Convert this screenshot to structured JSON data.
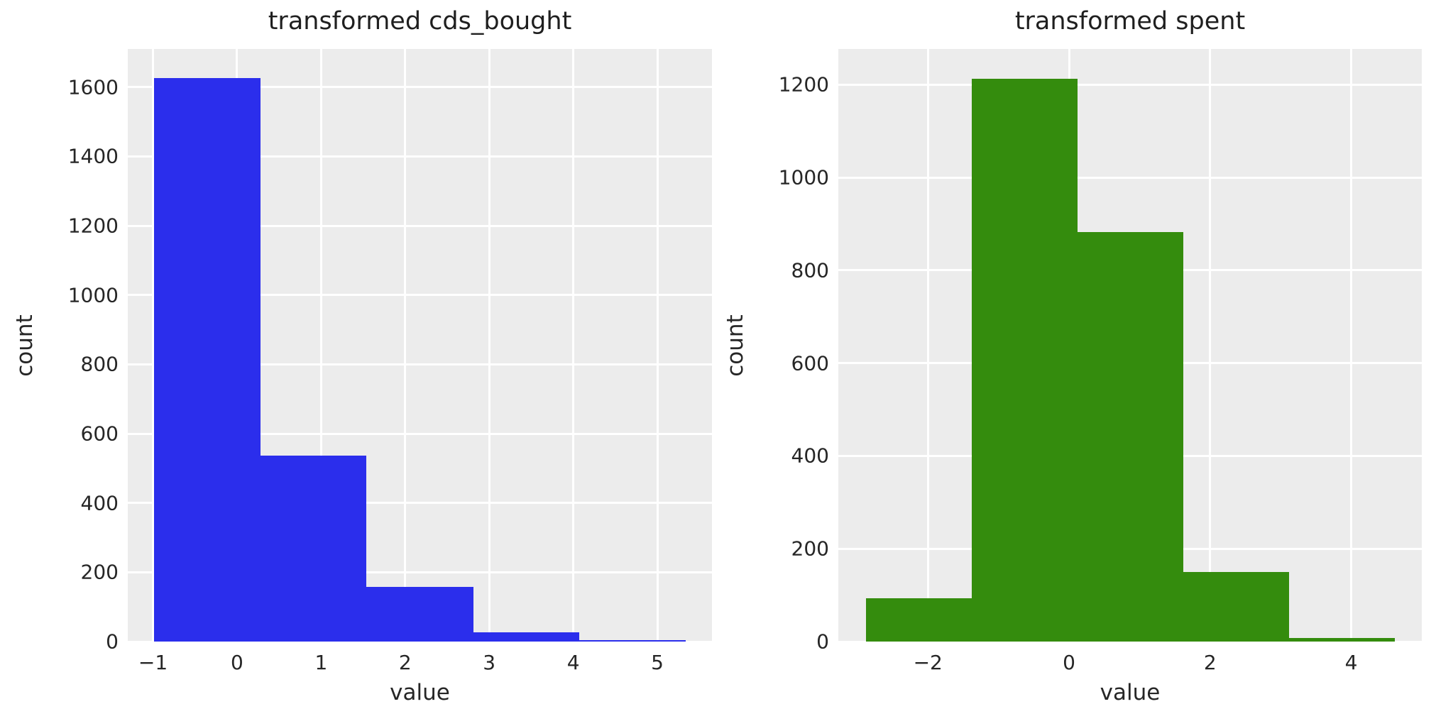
{
  "figure": {
    "background": "#ffffff",
    "plot_background": "#ececec",
    "grid_color": "#ffffff",
    "text_color": "#262626"
  },
  "chart_data": [
    {
      "type": "bar",
      "chart_kind": "histogram",
      "title": "transformed cds_bought",
      "xlabel": "value",
      "ylabel": "count",
      "bar_color": "#2b2eec",
      "bin_edges": [
        -0.99,
        0.28,
        1.54,
        2.81,
        4.07,
        5.34
      ],
      "counts": [
        1626,
        537,
        157,
        27,
        4
      ],
      "x_tick_values": [
        -1,
        0,
        1,
        2,
        3,
        4,
        5
      ],
      "x_tick_labels": [
        "−1",
        "0",
        "1",
        "2",
        "3",
        "4",
        "5"
      ],
      "y_tick_values": [
        0,
        200,
        400,
        600,
        800,
        1000,
        1200,
        1400,
        1600
      ],
      "y_tick_labels": [
        "0",
        "200",
        "400",
        "600",
        "800",
        "1000",
        "1200",
        "1400",
        "1600"
      ],
      "xlim": [
        -1.3,
        5.65
      ],
      "ylim": [
        0,
        1710
      ],
      "grid": true,
      "legend_position": "none"
    },
    {
      "type": "bar",
      "chart_kind": "histogram",
      "title": "transformed spent",
      "xlabel": "value",
      "ylabel": "count",
      "bar_color": "#348c0d",
      "bin_edges": [
        -2.88,
        -1.38,
        0.12,
        1.62,
        3.12,
        4.62
      ],
      "counts": [
        94,
        1213,
        882,
        150,
        8
      ],
      "x_tick_values": [
        -2,
        0,
        2,
        4
      ],
      "x_tick_labels": [
        "−2",
        "0",
        "2",
        "4"
      ],
      "y_tick_values": [
        0,
        200,
        400,
        600,
        800,
        1000,
        1200
      ],
      "y_tick_labels": [
        "0",
        "200",
        "400",
        "600",
        "800",
        "1000",
        "1200"
      ],
      "xlim": [
        -3.27,
        5.0
      ],
      "ylim": [
        0,
        1277
      ],
      "grid": true,
      "legend_position": "none"
    }
  ]
}
